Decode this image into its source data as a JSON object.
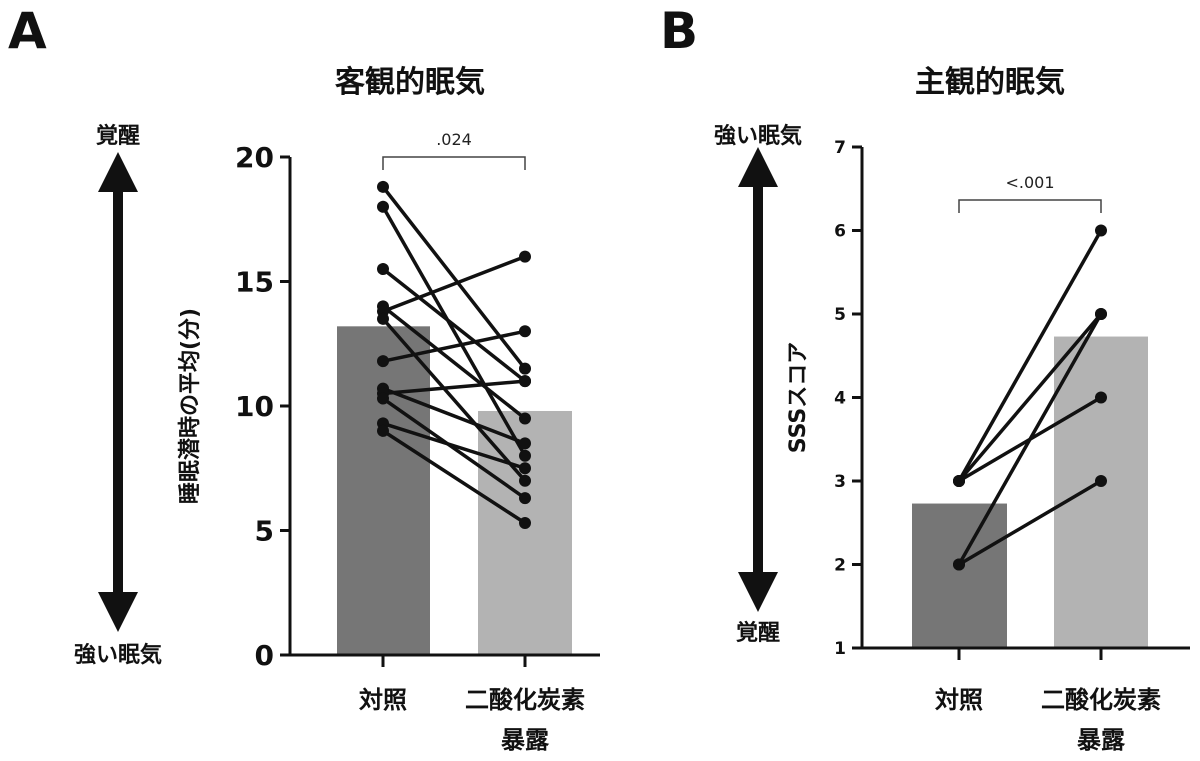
{
  "panels": [
    {
      "letter": "A",
      "title": "客観的眠気",
      "side_top": "覚醒",
      "side_bottom": "強い眠気",
      "pvalue": ".024"
    },
    {
      "letter": "B",
      "title": "主観的眠気",
      "side_top": "強い眠気",
      "side_bottom": "覚醒",
      "pvalue": "<.001"
    }
  ],
  "colors": {
    "control_bar": "#767676",
    "co2_bar": "#b3b3b3",
    "line": "#111111"
  },
  "chart_data": [
    {
      "type": "bar",
      "title": "客観的眠気",
      "ylabel": "睡眠潜時の平均(分)",
      "categories": [
        "対照",
        "二酸化炭素暴露"
      ],
      "category_lines": [
        [
          "対照"
        ],
        [
          "二酸化炭素",
          "暴露"
        ]
      ],
      "values": [
        13.2,
        9.8
      ],
      "ylim": [
        0,
        20
      ],
      "yticks": [
        0,
        5,
        10,
        15,
        20
      ],
      "paired_points": [
        [
          18.8,
          11.5
        ],
        [
          18.0,
          8.0
        ],
        [
          15.5,
          11.0
        ],
        [
          14.0,
          9.5
        ],
        [
          13.8,
          16.0
        ],
        [
          13.5,
          7.0
        ],
        [
          11.8,
          13.0
        ],
        [
          10.7,
          8.5
        ],
        [
          10.5,
          11.0
        ],
        [
          10.3,
          6.3
        ],
        [
          9.3,
          7.5
        ],
        [
          9.0,
          5.3
        ]
      ],
      "significance": ".024",
      "grid": false
    },
    {
      "type": "bar",
      "title": "主観的眠気",
      "ylabel": "SSSスコア",
      "categories": [
        "対照",
        "二酸化炭素暴露"
      ],
      "category_lines": [
        [
          "対照"
        ],
        [
          "二酸化炭素",
          "暴露"
        ]
      ],
      "values": [
        2.73,
        4.73
      ],
      "ylim": [
        1,
        7
      ],
      "yticks": [
        1,
        2,
        3,
        4,
        5,
        6,
        7
      ],
      "paired_points": [
        [
          3,
          6
        ],
        [
          3,
          4
        ],
        [
          2,
          5
        ],
        [
          3,
          5
        ],
        [
          2,
          3
        ]
      ],
      "significance": "<.001",
      "grid": false
    }
  ]
}
